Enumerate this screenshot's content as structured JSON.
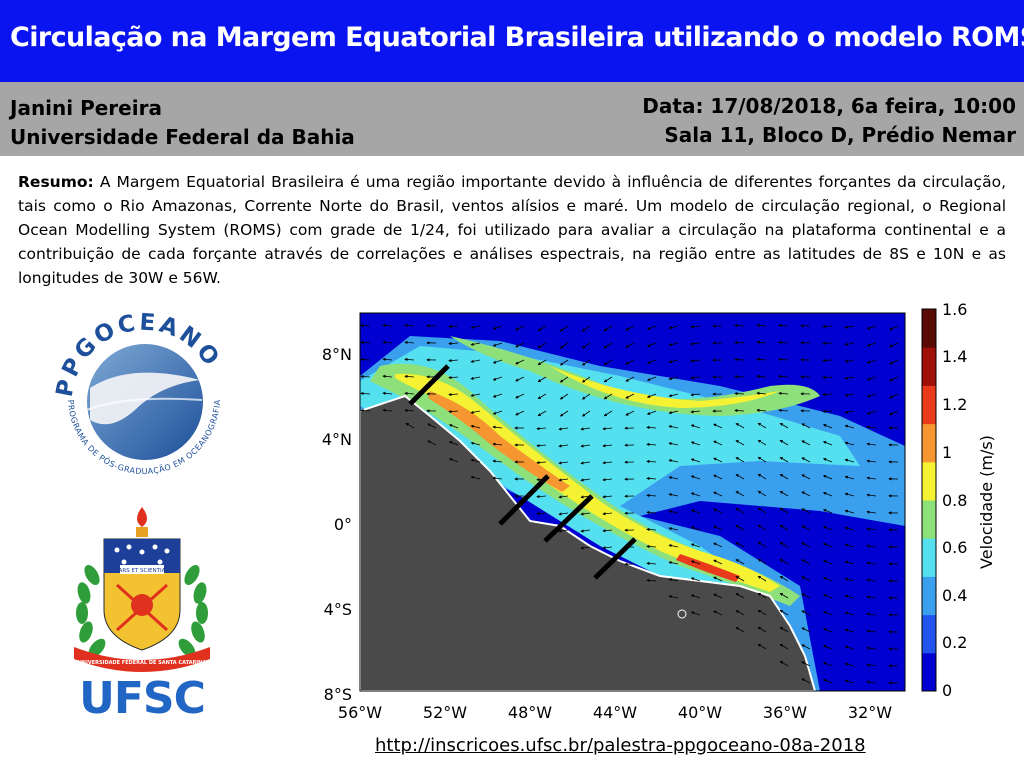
{
  "header": {
    "title": "Circulação na Margem Equatorial Brasileira utilizando o modelo ROMS",
    "author": "Janini Pereira",
    "institution": "Universidade Federal da Bahia",
    "date": "Data: 17/08/2018, 6a feira, 10:00",
    "location": "Sala 11,  Bloco D, Prédio Nemar"
  },
  "abstract": {
    "label": "Resumo:",
    "text": " A Margem Equatorial Brasileira é uma região importante devido à influência de diferentes forçantes da circulação, tais como o Rio Amazonas, Corrente Norte do Brasil, ventos alísios e maré. Um modelo de circulação regional, o Regional Ocean Modelling System (ROMS) com grade de 1/24, foi utilizado para avaliar a circulação na plataforma continental e a contribuição de cada forçante através de correlações e análises espectrais, na região entre as latitudes de 8S e 10N e as longitudes de 30W e 56W."
  },
  "logos": {
    "ppgoceano_word": "PPGOCEANO",
    "ppgoceano_sub": "PROGRAMA DE PÓS-GRADUAÇÃO EM OCEANOGRAFIA - UFSC",
    "ufsc_word": "UFSC",
    "ufsc_motto": "ARS ET SCIENTIA",
    "ufsc_banner": "UNIVERSIDADE FEDERAL DE SANTA CATARINA"
  },
  "map": {
    "y_ticks": [
      "8°N",
      "4°N",
      "0°",
      "4°S",
      "8°S"
    ],
    "x_ticks": [
      "56°W",
      "52°W",
      "48°W",
      "44°W",
      "40°W",
      "36°W",
      "32°W"
    ],
    "colorbar_ticks": [
      "1.6",
      "1.4",
      "1.2",
      "1",
      "0.8",
      "0.6",
      "0.4",
      "0.2",
      "0"
    ],
    "colorbar_label": "Velocidade (m/s)",
    "colors": [
      "#0000d0",
      "#2255ee",
      "#3aa0ee",
      "#55e0f0",
      "#8ee07a",
      "#f4f232",
      "#f59630",
      "#ea3a1c",
      "#a01008",
      "#5a0a04"
    ]
  },
  "footer": {
    "link": "http://inscricoes.ufsc.br/palestra-ppgoceano-08a-2018"
  }
}
